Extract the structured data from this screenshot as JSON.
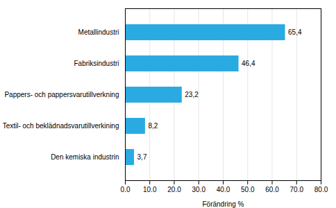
{
  "chart_data": {
    "type": "bar",
    "orientation": "horizontal",
    "categories": [
      "Den kemiska industrin",
      "Textil- och beklädnadsvarutillverkining",
      "Pappers- och pappersvarutillverkning",
      "Fabriksindustri",
      "Metallindustri"
    ],
    "values": [
      3.7,
      8.2,
      23.2,
      46.4,
      65.4
    ],
    "value_labels": [
      "3,7",
      "8,2",
      "23,2",
      "46,4",
      "65,4"
    ],
    "data_labels": true,
    "color": "#29abe2",
    "xlabel": "Förändring %",
    "xlim": [
      0,
      80
    ],
    "xticks": [
      {
        "value": 0,
        "label": "0.0"
      },
      {
        "value": 10,
        "label": "10.0"
      },
      {
        "value": 20,
        "label": "20.0"
      },
      {
        "value": 30,
        "label": "30.0"
      },
      {
        "value": 40,
        "label": "40.0"
      },
      {
        "value": 50,
        "label": "50.0"
      },
      {
        "value": 60,
        "label": "60.0"
      },
      {
        "value": 70,
        "label": "70.0"
      },
      {
        "value": 80,
        "label": "80.0"
      }
    ],
    "grid": true
  }
}
